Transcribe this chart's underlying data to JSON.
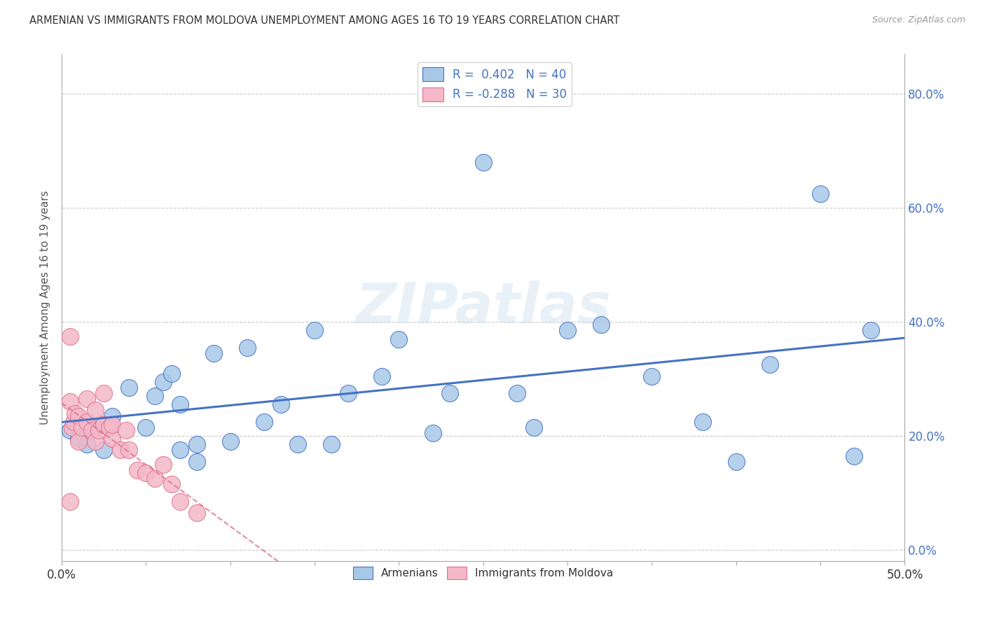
{
  "title": "ARMENIAN VS IMMIGRANTS FROM MOLDOVA UNEMPLOYMENT AMONG AGES 16 TO 19 YEARS CORRELATION CHART",
  "source": "Source: ZipAtlas.com",
  "ylabel": "Unemployment Among Ages 16 to 19 years",
  "xlim": [
    0.0,
    0.5
  ],
  "ylim": [
    -0.02,
    0.87
  ],
  "yticks": [
    0.0,
    0.2,
    0.4,
    0.6,
    0.8
  ],
  "yticklabels_right": [
    "0.0%",
    "20.0%",
    "40.0%",
    "60.0%",
    "80.0%"
  ],
  "armenian_color": "#a8c8e8",
  "armenia_line_color": "#4472c4",
  "moldova_color": "#f4b8c8",
  "moldova_line_color": "#e07090",
  "watermark_text": "ZIPatlas",
  "legend_R_armenian": " 0.402",
  "legend_N_armenian": "40",
  "legend_R_moldova": "-0.288",
  "legend_N_moldova": "30",
  "armenian_x": [
    0.005,
    0.01,
    0.015,
    0.02,
    0.025,
    0.03,
    0.04,
    0.05,
    0.055,
    0.06,
    0.065,
    0.07,
    0.08,
    0.09,
    0.1,
    0.11,
    0.12,
    0.14,
    0.15,
    0.17,
    0.2,
    0.22,
    0.25,
    0.27,
    0.3,
    0.32,
    0.35,
    0.38,
    0.42,
    0.45,
    0.47,
    0.48,
    0.07,
    0.08,
    0.13,
    0.16,
    0.19,
    0.23,
    0.28,
    0.4
  ],
  "armenian_y": [
    0.21,
    0.195,
    0.185,
    0.215,
    0.175,
    0.235,
    0.285,
    0.215,
    0.27,
    0.295,
    0.31,
    0.255,
    0.185,
    0.345,
    0.19,
    0.355,
    0.225,
    0.185,
    0.385,
    0.275,
    0.37,
    0.205,
    0.68,
    0.275,
    0.385,
    0.395,
    0.305,
    0.225,
    0.325,
    0.625,
    0.165,
    0.385,
    0.175,
    0.155,
    0.255,
    0.185,
    0.305,
    0.275,
    0.215,
    0.155
  ],
  "moldova_x": [
    0.005,
    0.005,
    0.006,
    0.007,
    0.008,
    0.01,
    0.01,
    0.012,
    0.015,
    0.015,
    0.018,
    0.02,
    0.02,
    0.022,
    0.025,
    0.025,
    0.028,
    0.03,
    0.03,
    0.035,
    0.038,
    0.04,
    0.045,
    0.05,
    0.055,
    0.06,
    0.065,
    0.07,
    0.08,
    0.005
  ],
  "moldova_y": [
    0.375,
    0.26,
    0.215,
    0.225,
    0.24,
    0.19,
    0.235,
    0.215,
    0.265,
    0.225,
    0.21,
    0.245,
    0.19,
    0.21,
    0.275,
    0.22,
    0.215,
    0.195,
    0.22,
    0.175,
    0.21,
    0.175,
    0.14,
    0.135,
    0.125,
    0.15,
    0.115,
    0.085,
    0.065,
    0.085
  ]
}
